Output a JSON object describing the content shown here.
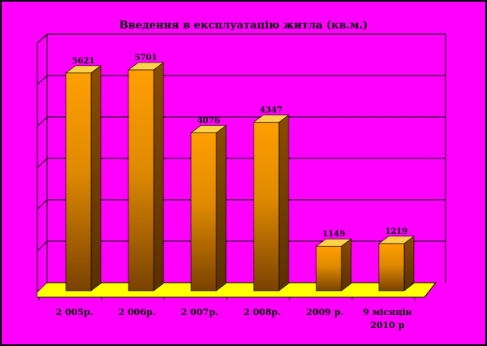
{
  "colors": {
    "background": "#ff00ff",
    "floor": "#ffff00",
    "bar_top": "#ffd24a",
    "bar_face_top": "#ff9f00",
    "bar_face_bottom": "#7a4200",
    "bar_side": "#5a3000",
    "border": "#000000"
  },
  "chart_data": {
    "type": "bar",
    "title": "Введення в експлуатацію житла (кв.м.)",
    "xlabel": "",
    "ylabel": "",
    "categories": [
      [
        "2 005р."
      ],
      [
        "2 006р."
      ],
      [
        "2 007р."
      ],
      [
        "2 008р."
      ],
      [
        "2009 р."
      ],
      [
        "9 місяців",
        "2010 р"
      ]
    ],
    "values": [
      5621,
      5701,
      4076,
      4347,
      1149,
      1219
    ],
    "ylim": [
      0,
      6000
    ],
    "gridlines": true,
    "data_labels": true,
    "legend": "none",
    "style": "3d-columns"
  }
}
